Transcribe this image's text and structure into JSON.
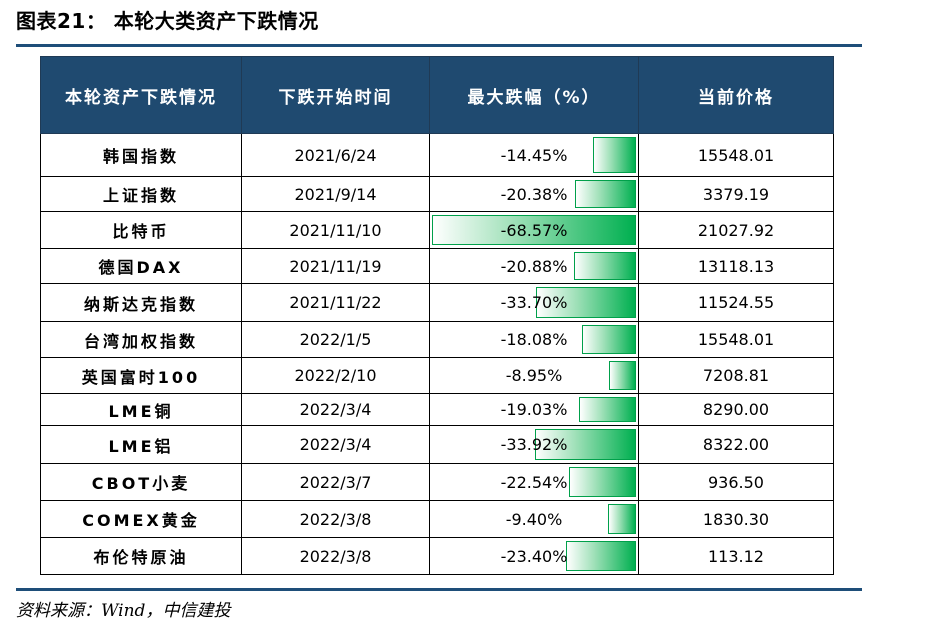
{
  "title": "图表21： 本轮大类资产下跌情况",
  "source": "资料来源：Wind，中信建投",
  "table": {
    "headers": [
      "本轮资产下跌情况",
      "下跌开始时间",
      "最大跌幅（%）",
      "当前价格"
    ]
  },
  "chart_data": {
    "type": "table",
    "columns": [
      "本轮资产下跌情况",
      "下跌开始时间",
      "最大跌幅（%）",
      "当前价格"
    ],
    "bar_max_abs": 68.57,
    "rows": [
      {
        "asset": "韩国指数",
        "start": "2021/6/24",
        "drop": -14.45,
        "drop_label": "-14.45%",
        "price": "15548.01"
      },
      {
        "asset": "上证指数",
        "start": "2021/9/14",
        "drop": -20.38,
        "drop_label": "-20.38%",
        "price": "3379.19"
      },
      {
        "asset": "比特币",
        "start": "2021/11/10",
        "drop": -68.57,
        "drop_label": "-68.57%",
        "price": "21027.92"
      },
      {
        "asset": "德国DAX",
        "start": "2021/11/19",
        "drop": -20.88,
        "drop_label": "-20.88%",
        "price": "13118.13"
      },
      {
        "asset": "纳斯达克指数",
        "start": "2021/11/22",
        "drop": -33.7,
        "drop_label": "-33.70%",
        "price": "11524.55"
      },
      {
        "asset": "台湾加权指数",
        "start": "2022/1/5",
        "drop": -18.08,
        "drop_label": "-18.08%",
        "price": "15548.01"
      },
      {
        "asset": "英国富时100",
        "start": "2022/2/10",
        "drop": -8.95,
        "drop_label": "-8.95%",
        "price": "7208.81"
      },
      {
        "asset": "LME铜",
        "start": "2022/3/4",
        "drop": -19.03,
        "drop_label": "-19.03%",
        "price": "8290.00"
      },
      {
        "asset": "LME铝",
        "start": "2022/3/4",
        "drop": -33.92,
        "drop_label": "-33.92%",
        "price": "8322.00"
      },
      {
        "asset": "CBOT小麦",
        "start": "2022/3/7",
        "drop": -22.54,
        "drop_label": "-22.54%",
        "price": "936.50"
      },
      {
        "asset": "COMEX黄金",
        "start": "2022/3/8",
        "drop": -9.4,
        "drop_label": "-9.40%",
        "price": "1830.30"
      },
      {
        "asset": "布伦特原油",
        "start": "2022/3/8",
        "drop": -23.4,
        "drop_label": "-23.40%",
        "price": "113.12"
      }
    ]
  }
}
